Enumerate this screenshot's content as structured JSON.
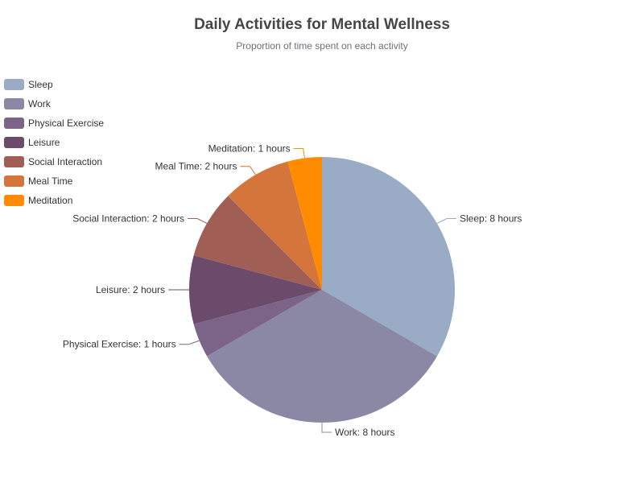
{
  "chart_data": {
    "type": "pie",
    "title": "Daily Activities for Mental Wellness",
    "subtitle": "Proportion of time spent on each activity",
    "legend_position": "left",
    "unit": "hours",
    "slices": [
      {
        "name": "Sleep",
        "value": 8,
        "color": "#9aabc6",
        "label": "Sleep: 8 hours"
      },
      {
        "name": "Work",
        "value": 8,
        "color": "#8a88a5",
        "label": "Work: 8 hours"
      },
      {
        "name": "Physical Exercise",
        "value": 1,
        "color": "#7b6488",
        "label": "Physical Exercise: 1 hours"
      },
      {
        "name": "Leisure",
        "value": 2,
        "color": "#6b4a6c",
        "label": "Leisure: 2 hours"
      },
      {
        "name": "Social Interaction",
        "value": 2,
        "color": "#a05e55",
        "label": "Social Interaction: 2 hours"
      },
      {
        "name": "Meal Time",
        "value": 2,
        "color": "#d4753c",
        "label": "Meal Time: 2 hours"
      },
      {
        "name": "Meditation",
        "value": 1,
        "color": "#ff8c00",
        "label": "Meditation: 1 hours"
      }
    ]
  }
}
